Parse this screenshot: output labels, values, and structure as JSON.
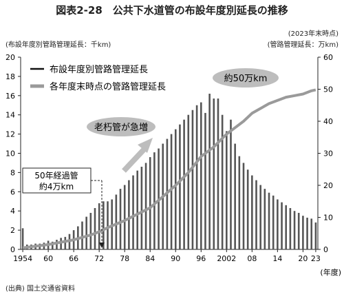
{
  "title": "図表2-28　公共下水道管の布設年度別延長の推移",
  "left_unit": "(布設年度別管路管理延長：千km)",
  "right_year": "(2023年末時点)",
  "right_unit": "(管路管理延長：万km)",
  "source": "(出典) 国土交通省資料",
  "colors": {
    "bar": "#555555",
    "line": "#9a9a9a",
    "bubble_fill": "#bdbdbd",
    "arrow": "#bdbdbd"
  },
  "annotations": {
    "old_pipes": "老朽管が急増",
    "total_500k": "約50万km",
    "fifty_years_line1": "50年経過管",
    "fifty_years_line2": "約4万km"
  },
  "chart_data": {
    "type": "bar",
    "title": "公共下水道管の布設年度別延長の推移",
    "xlabel": "(年度)",
    "ylabel_left": "布設年度別管路管理延長：千km",
    "ylabel_right": "管路管理延長：万km",
    "x_ticks": [
      "1954",
      "60",
      "66",
      "72",
      "78",
      "84",
      "90",
      "96",
      "2002",
      "08",
      "14",
      "20",
      "23"
    ],
    "y_left_ticks": [
      "0",
      "2",
      "4",
      "6",
      "8",
      "10",
      "12",
      "14",
      "16",
      "18",
      "20"
    ],
    "y_right_ticks": [
      "0",
      "10",
      "20",
      "30",
      "40",
      "50",
      "60"
    ],
    "ylim_left": [
      0,
      20
    ],
    "ylim_right": [
      0,
      60
    ],
    "legend_position": "top-left",
    "legend": [
      "布設年度別管路管理延長",
      "各年度末時点の管路管理延長"
    ],
    "series": [
      {
        "name": "布設年度別管路管理延長",
        "type": "bar",
        "axis": "left",
        "x": [
          1954,
          1955,
          1956,
          1957,
          1958,
          1959,
          1960,
          1961,
          1962,
          1963,
          1964,
          1965,
          1966,
          1967,
          1968,
          1969,
          1970,
          1971,
          1972,
          1973,
          1974,
          1975,
          1976,
          1977,
          1978,
          1979,
          1980,
          1981,
          1982,
          1983,
          1984,
          1985,
          1986,
          1987,
          1988,
          1989,
          1990,
          1991,
          1992,
          1993,
          1994,
          1995,
          1996,
          1997,
          1998,
          1999,
          2000,
          2001,
          2002,
          2003,
          2004,
          2005,
          2006,
          2007,
          2008,
          2009,
          2010,
          2011,
          2012,
          2013,
          2014,
          2015,
          2016,
          2017,
          2018,
          2019,
          2020,
          2021,
          2022,
          2023
        ],
        "values": [
          2.2,
          0.5,
          0.5,
          0.6,
          0.6,
          0.7,
          0.9,
          0.8,
          1.0,
          1.2,
          1.3,
          1.6,
          2.0,
          2.4,
          2.9,
          3.4,
          3.8,
          4.3,
          4.8,
          5.0,
          5.0,
          5.2,
          5.7,
          6.3,
          6.7,
          7.2,
          7.7,
          8.2,
          8.6,
          9.0,
          9.6,
          10.1,
          10.5,
          11.0,
          11.5,
          12.0,
          12.5,
          13.0,
          13.5,
          14.0,
          14.5,
          15.0,
          15.3,
          14.2,
          16.2,
          15.7,
          15.7,
          14.0,
          12.3,
          13.5,
          11.0,
          9.7,
          9.0,
          8.3,
          7.7,
          7.2,
          6.7,
          6.3,
          5.9,
          5.6,
          5.2,
          4.9,
          4.6,
          4.3,
          4.0,
          3.8,
          3.5,
          3.3,
          3.2,
          2.8
        ]
      },
      {
        "name": "各年度末時点の管路管理延長",
        "type": "line",
        "axis": "right",
        "x": [
          1954,
          1960,
          1966,
          1970,
          1972,
          1974,
          1978,
          1984,
          1990,
          1993,
          1996,
          1999,
          2002,
          2004,
          2006,
          2008,
          2010,
          2012,
          2014,
          2016,
          2018,
          2020,
          2022,
          2023
        ],
        "values": [
          0.5,
          1.5,
          3.0,
          4.5,
          5.5,
          6.8,
          9.0,
          13.0,
          20.0,
          24.0,
          29.0,
          32.0,
          36.0,
          38.0,
          40.0,
          42.5,
          44.0,
          45.5,
          46.5,
          47.5,
          48.0,
          48.5,
          49.5,
          49.8
        ]
      }
    ]
  }
}
